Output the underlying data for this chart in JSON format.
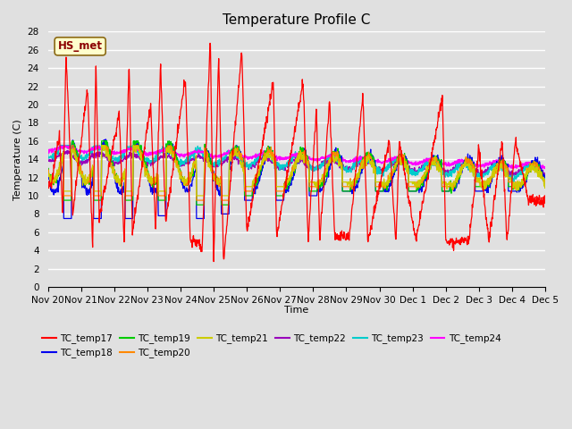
{
  "title": "Temperature Profile C",
  "xlabel": "Time",
  "ylabel": "Temperature (C)",
  "ylim": [
    0,
    28
  ],
  "yticks": [
    0,
    2,
    4,
    6,
    8,
    10,
    12,
    14,
    16,
    18,
    20,
    22,
    24,
    26,
    28
  ],
  "xtick_labels": [
    "Nov 20",
    "Nov 21",
    "Nov 22",
    "Nov 23",
    "Nov 24",
    "Nov 25",
    "Nov 26",
    "Nov 27",
    "Nov 28",
    "Nov 29",
    "Nov 30",
    "Dec 1",
    "Dec 2",
    "Dec 3",
    "Dec 4",
    "Dec 5"
  ],
  "series_colors": {
    "TC_temp17": "#ff0000",
    "TC_temp18": "#0000ee",
    "TC_temp19": "#00cc00",
    "TC_temp20": "#ff8800",
    "TC_temp21": "#cccc00",
    "TC_temp22": "#9900bb",
    "TC_temp23": "#00cccc",
    "TC_temp24": "#ff00ff"
  },
  "annotation_text": "HS_met",
  "plot_bg_color": "#e0e0e0",
  "grid_color": "#ffffff",
  "title_fontsize": 11,
  "axis_label_fontsize": 8,
  "tick_fontsize": 7.5
}
